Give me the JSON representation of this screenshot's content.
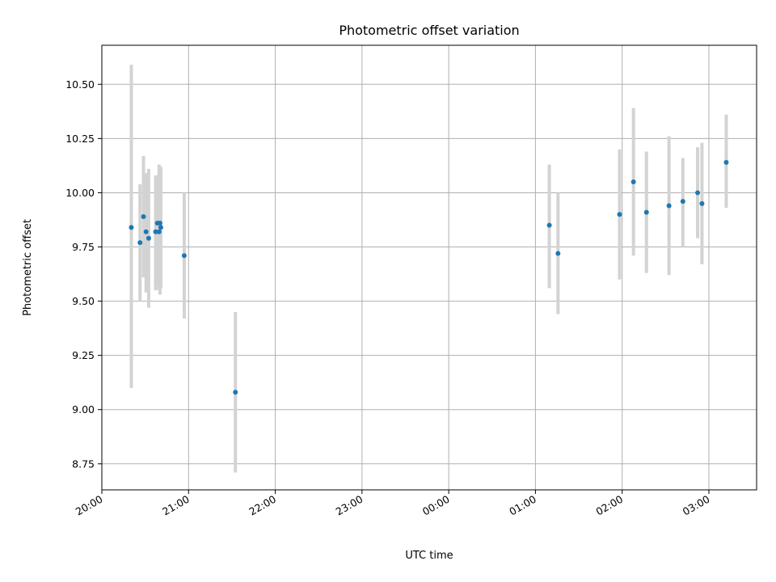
{
  "chart_data": {
    "type": "scatter",
    "title": "Photometric offset variation",
    "xlabel": "UTC time",
    "ylabel": "Photometric offset",
    "x_unit": "hours after 20:00 UTC",
    "xlim": [
      0.0,
      7.55
    ],
    "ylim": [
      8.63,
      10.68
    ],
    "x_ticks": [
      {
        "label": "20:00",
        "x": 0
      },
      {
        "label": "21:00",
        "x": 1
      },
      {
        "label": "22:00",
        "x": 2
      },
      {
        "label": "23:00",
        "x": 3
      },
      {
        "label": "00:00",
        "x": 4
      },
      {
        "label": "01:00",
        "x": 5
      },
      {
        "label": "02:00",
        "x": 6
      },
      {
        "label": "03:00",
        "x": 7
      }
    ],
    "y_ticks": [
      8.75,
      9.0,
      9.25,
      9.5,
      9.75,
      10.0,
      10.25,
      10.5
    ],
    "y_tick_labels": [
      "8.75",
      "9.00",
      "9.25",
      "9.50",
      "9.75",
      "10.00",
      "10.25",
      "10.50"
    ],
    "grid": true,
    "marker_color": "#1f77b4",
    "errorbar_color": "#d3d3d3",
    "points": [
      {
        "x": 0.34,
        "y": 9.84,
        "low": 9.1,
        "high": 10.59
      },
      {
        "x": 0.44,
        "y": 9.77,
        "low": 9.5,
        "high": 10.04
      },
      {
        "x": 0.48,
        "y": 9.89,
        "low": 9.61,
        "high": 10.17
      },
      {
        "x": 0.51,
        "y": 9.82,
        "low": 9.54,
        "high": 10.09
      },
      {
        "x": 0.54,
        "y": 9.79,
        "low": 9.47,
        "high": 10.11
      },
      {
        "x": 0.62,
        "y": 9.82,
        "low": 9.55,
        "high": 10.08
      },
      {
        "x": 0.64,
        "y": 9.86,
        "low": 9.57,
        "high": 10.08
      },
      {
        "x": 0.66,
        "y": 9.82,
        "low": 9.55,
        "high": 10.13
      },
      {
        "x": 0.67,
        "y": 9.86,
        "low": 9.53,
        "high": 10.12
      },
      {
        "x": 0.68,
        "y": 9.84,
        "low": 9.56,
        "high": 10.12
      },
      {
        "x": 0.95,
        "y": 9.71,
        "low": 9.42,
        "high": 10.0
      },
      {
        "x": 1.54,
        "y": 9.08,
        "low": 8.71,
        "high": 9.45
      },
      {
        "x": 5.16,
        "y": 9.85,
        "low": 9.56,
        "high": 10.13
      },
      {
        "x": 5.26,
        "y": 9.72,
        "low": 9.44,
        "high": 10.0
      },
      {
        "x": 5.97,
        "y": 9.9,
        "low": 9.6,
        "high": 10.2
      },
      {
        "x": 6.13,
        "y": 10.05,
        "low": 9.71,
        "high": 10.39
      },
      {
        "x": 6.28,
        "y": 9.91,
        "low": 9.63,
        "high": 10.19
      },
      {
        "x": 6.54,
        "y": 9.94,
        "low": 9.62,
        "high": 10.26
      },
      {
        "x": 6.7,
        "y": 9.96,
        "low": 9.75,
        "high": 10.16
      },
      {
        "x": 6.87,
        "y": 10.0,
        "low": 9.79,
        "high": 10.21
      },
      {
        "x": 6.92,
        "y": 9.95,
        "low": 9.67,
        "high": 10.23
      },
      {
        "x": 7.2,
        "y": 10.14,
        "low": 9.93,
        "high": 10.36
      }
    ]
  }
}
